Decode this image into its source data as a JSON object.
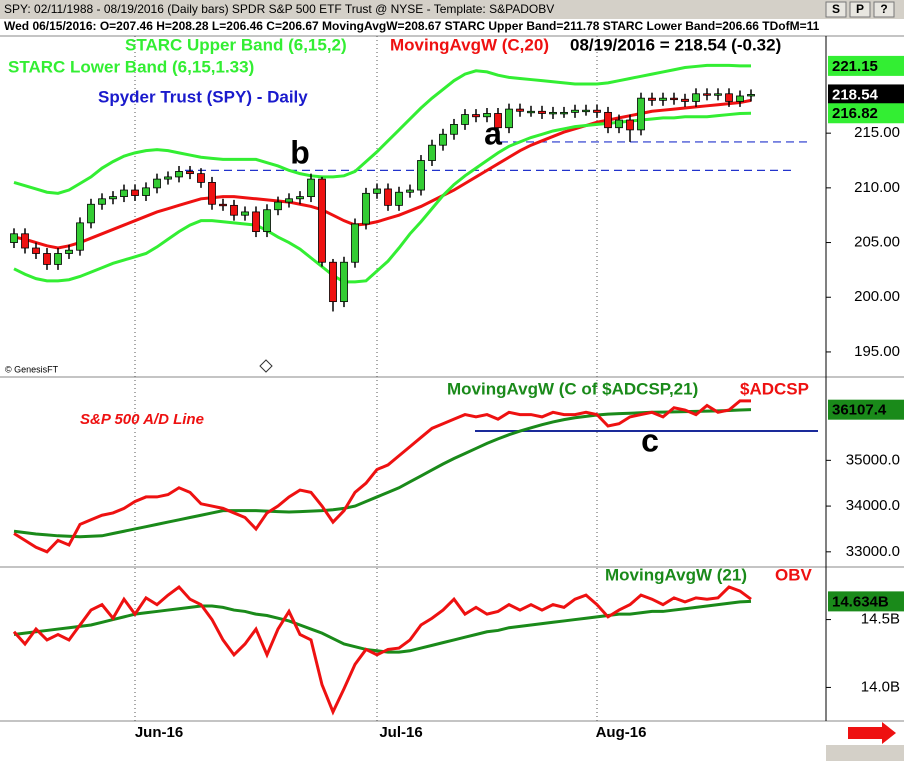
{
  "header": {
    "top_line": "SPY: 02/11/1988 - 08/19/2016 (Daily bars)   SPDR S&P 500 ETF Trust @ NYSE  -  Template: S&PADOBV",
    "buttons": [
      "S",
      "P",
      "?"
    ],
    "info_line": "Wed 06/15/2016: O=207.46 H=208.28 L=206.46 C=206.67 MovingAvgW=208.67 STARC Upper Band=211.78 STARC Lower Band=206.66 TDofM=11",
    "watermark": "© GenesisFT"
  },
  "chart_data": [
    {
      "type": "candlestick",
      "title": "Spyder Trust (SPY) - Daily",
      "grid": true,
      "categories": [
        null,
        null,
        null,
        null,
        null,
        null,
        null,
        null,
        null,
        null,
        null,
        "Jun-16",
        null,
        null,
        null,
        null,
        null,
        null,
        null,
        null,
        null,
        null,
        null,
        null,
        null,
        null,
        null,
        null,
        null,
        null,
        null,
        null,
        null,
        "Jul-16",
        null,
        null,
        null,
        null,
        null,
        null,
        null,
        null,
        null,
        null,
        null,
        null,
        null,
        null,
        null,
        null,
        null,
        null,
        null,
        "Aug-16",
        null,
        null,
        null,
        null,
        null,
        null,
        null,
        null,
        null,
        null,
        null,
        null,
        null,
        null
      ],
      "open": [
        205.0,
        205.8,
        204.5,
        204.0,
        203.0,
        204.0,
        204.3,
        206.8,
        208.5,
        209.0,
        209.2,
        209.8,
        209.3,
        210.0,
        210.8,
        211.0,
        211.5,
        211.3,
        210.5,
        208.5,
        208.4,
        207.5,
        207.8,
        206.0,
        208.0,
        208.7,
        209.0,
        209.2,
        210.8,
        203.2,
        199.6,
        203.2,
        206.7,
        209.5,
        209.9,
        208.4,
        209.6,
        209.8,
        212.5,
        213.9,
        214.9,
        215.8,
        216.7,
        216.5,
        216.8,
        215.5,
        217.2,
        217.0,
        217.0,
        216.8,
        216.9,
        216.9,
        217.1,
        217.1,
        216.9,
        215.5,
        216.2,
        215.3,
        218.2,
        218.0,
        218.2,
        218.1,
        217.9,
        218.6,
        218.5,
        218.6,
        217.9,
        218.4
      ],
      "high": [
        206.3,
        206.3,
        205.0,
        204.5,
        204.5,
        204.8,
        207.3,
        209.0,
        209.5,
        209.7,
        210.3,
        210.3,
        210.5,
        211.3,
        211.5,
        212.0,
        212.0,
        211.8,
        211.0,
        209.0,
        208.9,
        208.3,
        208.3,
        208.5,
        209.2,
        209.5,
        209.7,
        211.3,
        211.0,
        203.5,
        203.7,
        207.2,
        210.0,
        210.4,
        210.4,
        210.1,
        210.3,
        213.0,
        214.4,
        215.4,
        216.3,
        217.2,
        217.2,
        217.3,
        217.3,
        217.7,
        217.7,
        217.5,
        217.5,
        217.4,
        217.4,
        217.6,
        217.6,
        217.6,
        217.4,
        216.7,
        216.7,
        218.7,
        218.7,
        218.7,
        218.7,
        218.6,
        219.1,
        219.1,
        219.1,
        219.1,
        218.9,
        219.0
      ],
      "low": [
        204.5,
        204.0,
        203.5,
        202.5,
        202.5,
        203.5,
        203.8,
        206.3,
        208.0,
        208.5,
        208.7,
        208.8,
        208.8,
        209.5,
        210.3,
        210.5,
        210.8,
        210.0,
        208.0,
        207.9,
        207.0,
        207.0,
        205.5,
        205.5,
        207.5,
        208.2,
        208.5,
        208.7,
        202.8,
        198.7,
        199.1,
        202.7,
        206.2,
        209.0,
        207.9,
        207.9,
        209.1,
        209.3,
        212.0,
        213.4,
        214.4,
        215.3,
        216.0,
        216.0,
        215.0,
        215.0,
        216.5,
        216.5,
        216.3,
        216.3,
        216.4,
        216.4,
        216.6,
        216.4,
        215.0,
        215.0,
        214.2,
        214.8,
        217.5,
        217.5,
        217.6,
        217.4,
        217.4,
        218.0,
        218.0,
        217.4,
        217.4,
        217.9
      ],
      "close": [
        205.8,
        204.5,
        204.0,
        203.0,
        204.0,
        204.3,
        206.8,
        208.5,
        209.0,
        209.2,
        209.8,
        209.3,
        210.0,
        210.8,
        211.0,
        211.5,
        211.3,
        210.5,
        208.5,
        208.4,
        207.5,
        207.8,
        206.0,
        208.0,
        208.7,
        209.0,
        209.2,
        210.8,
        203.2,
        199.6,
        203.2,
        206.7,
        209.5,
        209.9,
        208.4,
        209.6,
        209.8,
        212.5,
        213.9,
        214.9,
        215.8,
        216.7,
        216.5,
        216.8,
        215.5,
        217.2,
        217.0,
        217.0,
        216.8,
        216.9,
        216.9,
        217.1,
        217.1,
        216.9,
        215.5,
        216.2,
        215.3,
        218.2,
        218.0,
        218.2,
        218.1,
        217.9,
        218.6,
        218.5,
        218.6,
        217.9,
        218.4,
        218.54
      ],
      "up_color": "#33cc33",
      "down_color": "#ee1111",
      "overlays": [
        {
          "name": "STARC Upper Band (6,15,2)",
          "color": "#33ee33",
          "values": [
            210.5,
            210.2,
            209.9,
            209.6,
            209.5,
            209.8,
            210.4,
            211.0,
            211.8,
            212.4,
            212.9,
            213.2,
            213.4,
            213.5,
            213.4,
            213.2,
            213.0,
            212.8,
            212.7,
            212.6,
            212.6,
            212.6,
            212.6,
            212.3,
            212.0,
            211.6,
            211.3,
            211.1,
            211.0,
            211.0,
            211.1,
            211.5,
            212.4,
            213.3,
            214.3,
            215.3,
            216.3,
            217.3,
            218.2,
            219.0,
            219.8,
            220.4,
            220.7,
            220.6,
            220.3,
            220.1,
            220.0,
            219.9,
            219.8,
            219.7,
            219.6,
            219.5,
            219.5,
            219.5,
            219.6,
            219.8,
            220.0,
            220.2,
            220.4,
            220.6,
            220.8,
            221.0,
            221.1,
            221.2,
            221.2,
            221.2,
            221.15,
            221.15
          ]
        },
        {
          "name": "MovingAvgW (C,20)",
          "color": "#ee1111",
          "values": [
            205.5,
            205.3,
            205.0,
            204.7,
            204.5,
            204.7,
            205.0,
            205.4,
            205.8,
            206.2,
            206.6,
            207.0,
            207.4,
            207.8,
            208.1,
            208.4,
            208.7,
            209.0,
            209.1,
            209.2,
            209.2,
            209.1,
            209.0,
            208.9,
            208.8,
            208.7,
            208.5,
            208.3,
            208.0,
            207.5,
            207.0,
            206.6,
            206.7,
            206.9,
            207.2,
            207.5,
            207.9,
            208.3,
            208.8,
            209.3,
            209.8,
            210.4,
            211.0,
            211.6,
            212.2,
            212.8,
            213.4,
            213.9,
            214.3,
            214.7,
            215.1,
            215.4,
            215.7,
            216.0,
            216.2,
            216.4,
            216.6,
            216.8,
            217.0,
            217.1,
            217.2,
            217.3,
            217.4,
            217.5,
            217.6,
            217.7,
            217.8,
            218.0
          ]
        },
        {
          "name": "STARC Lower Band (6,15,1.33)",
          "color": "#33ee33",
          "values": [
            202.6,
            202.1,
            201.7,
            201.5,
            201.5,
            201.6,
            201.9,
            202.3,
            202.7,
            203.1,
            203.4,
            203.7,
            204.0,
            204.6,
            205.3,
            206.0,
            206.6,
            207.0,
            207.0,
            206.9,
            206.8,
            206.7,
            206.6,
            206.1,
            205.5,
            205.0,
            204.4,
            203.6,
            202.8,
            202.0,
            201.4,
            201.4,
            201.5,
            202.4,
            203.3,
            204.5,
            205.8,
            206.9,
            208.1,
            209.3,
            210.3,
            211.1,
            211.8,
            212.5,
            213.2,
            213.8,
            214.2,
            214.6,
            214.9,
            215.2,
            215.4,
            215.6,
            215.7,
            215.8,
            215.9,
            216.0,
            216.1,
            216.2,
            216.3,
            216.4,
            216.4,
            216.5,
            216.5,
            216.5,
            216.6,
            216.7,
            216.8,
            216.82
          ]
        }
      ],
      "legend_extra": "08/19/2016 = 218.54 (-0.32)",
      "ylim": [
        192.8,
        223.7
      ],
      "yticks": [
        {
          "value": 195,
          "label": "195.00"
        },
        {
          "value": 200,
          "label": "200.00"
        },
        {
          "value": 205,
          "label": "205.00"
        },
        {
          "value": 210,
          "label": "210.00"
        },
        {
          "value": 215,
          "label": "215.00"
        }
      ],
      "end_labels": [
        {
          "value": 221.15,
          "label": "221.15",
          "color": "#33ee33"
        },
        {
          "value": 218.54,
          "label": "218.54",
          "color": "#000000"
        },
        {
          "value": 216.82,
          "label": "216.82",
          "color": "#33ee33"
        }
      ],
      "levels": [
        214.2,
        211.6
      ],
      "level_color": "#2233cc",
      "annotations": [
        "b",
        "a"
      ]
    },
    {
      "type": "line",
      "title": "S&P 500 A/D Line",
      "series": [
        {
          "name": "MovingAvgW (C of $ADCSP,21)",
          "color": "#1a8a1a",
          "values": [
            33450,
            33420,
            33390,
            33370,
            33350,
            33340,
            33330,
            33340,
            33350,
            33400,
            33450,
            33500,
            33550,
            33600,
            33650,
            33700,
            33750,
            33800,
            33850,
            33900,
            33900,
            33900,
            33900,
            33890,
            33880,
            33870,
            33880,
            33890,
            33900,
            33920,
            33950,
            34000,
            34100,
            34200,
            34300,
            34400,
            34530,
            34660,
            34790,
            34920,
            35040,
            35150,
            35260,
            35370,
            35470,
            35560,
            35640,
            35710,
            35780,
            35840,
            35890,
            35930,
            35960,
            35990,
            36010,
            36020,
            36030,
            36040,
            36050,
            36055,
            36060,
            36065,
            36070,
            36075,
            36080,
            36090,
            36100,
            36107.4
          ]
        },
        {
          "name": "$ADCSP",
          "color": "#ee1111",
          "values": [
            33400,
            33250,
            33100,
            33000,
            33250,
            33150,
            33600,
            33700,
            33800,
            33850,
            33950,
            34100,
            34200,
            34200,
            34250,
            34400,
            34300,
            34050,
            34000,
            33950,
            33850,
            33750,
            33500,
            33850,
            34000,
            34200,
            34350,
            34300,
            34000,
            33650,
            33900,
            34300,
            34500,
            34800,
            34900,
            35100,
            35300,
            35500,
            35700,
            35800,
            35900,
            36000,
            35950,
            36000,
            35900,
            36050,
            36000,
            36000,
            35950,
            36050,
            36000,
            36000,
            36050,
            36000,
            35750,
            35800,
            35950,
            36000,
            36050,
            35950,
            36150,
            36100,
            36000,
            36200,
            36050,
            36100,
            36300,
            36300
          ]
        }
      ],
      "ylim": [
        32690,
        36800
      ],
      "yticks": [
        {
          "value": 33000,
          "label": "33000.0"
        },
        {
          "value": 34000,
          "label": "34000.0"
        },
        {
          "value": 35000,
          "label": "35000.0"
        }
      ],
      "end_labels": [
        {
          "value": 36107.4,
          "label": "36107.4",
          "color": "#1a8a1a"
        }
      ],
      "levels": [
        35640
      ],
      "level_color": "#1a2a9a",
      "annotations": [
        "c"
      ]
    },
    {
      "type": "line",
      "series": [
        {
          "name": "MovingAvgW (21)",
          "color": "#1a8a1a",
          "values": [
            14.39,
            14.4,
            14.41,
            14.42,
            14.43,
            14.44,
            14.45,
            14.46,
            14.48,
            14.5,
            14.52,
            14.54,
            14.55,
            14.56,
            14.57,
            14.58,
            14.59,
            14.6,
            14.6,
            14.59,
            14.57,
            14.56,
            14.54,
            14.53,
            14.51,
            14.49,
            14.46,
            14.43,
            14.4,
            14.36,
            14.32,
            14.3,
            14.28,
            14.27,
            14.26,
            14.26,
            14.27,
            14.29,
            14.31,
            14.33,
            14.35,
            14.37,
            14.39,
            14.41,
            14.42,
            14.44,
            14.45,
            14.46,
            14.47,
            14.48,
            14.49,
            14.5,
            14.51,
            14.52,
            14.53,
            14.54,
            14.54,
            14.55,
            14.56,
            14.56,
            14.57,
            14.58,
            14.59,
            14.6,
            14.61,
            14.62,
            14.63,
            14.634
          ]
        },
        {
          "name": "OBV",
          "color": "#ee1111",
          "values": [
            14.41,
            14.32,
            14.43,
            14.35,
            14.39,
            14.35,
            14.46,
            14.57,
            14.61,
            14.51,
            14.65,
            14.54,
            14.66,
            14.61,
            14.68,
            14.74,
            14.65,
            14.61,
            14.5,
            14.35,
            14.24,
            14.32,
            14.43,
            14.24,
            14.43,
            14.56,
            14.39,
            14.35,
            14.02,
            13.82,
            13.99,
            14.17,
            14.28,
            14.24,
            14.28,
            14.29,
            14.35,
            14.46,
            14.51,
            14.57,
            14.65,
            14.54,
            14.59,
            14.54,
            14.56,
            14.61,
            14.57,
            14.61,
            14.57,
            14.61,
            14.59,
            14.65,
            14.68,
            14.61,
            14.52,
            14.57,
            14.61,
            14.68,
            14.65,
            14.61,
            14.66,
            14.63,
            14.66,
            14.65,
            14.66,
            14.74,
            14.71,
            14.65
          ]
        }
      ],
      "ylim": [
        13.76,
        14.88
      ],
      "yticks": [
        {
          "value": 14,
          "label": "14.0B"
        },
        {
          "value": 14.5,
          "label": "14.5B"
        }
      ],
      "end_labels": [
        {
          "value": 14.634,
          "label": "14.634B",
          "color": "#1a8a1a"
        }
      ]
    }
  ]
}
